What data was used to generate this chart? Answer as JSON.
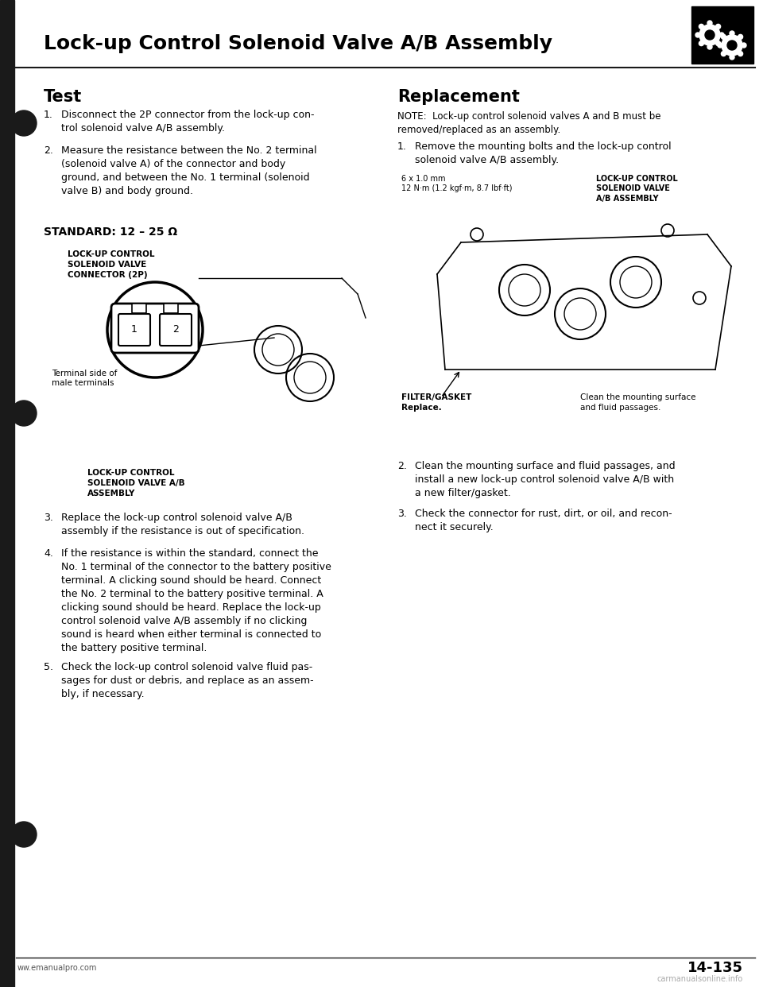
{
  "page_title": "Lock-up Control Solenoid Valve A/B Assembly",
  "page_number": "14-135",
  "website_left": "ww.emanualpro.com",
  "website_right": "carmanualsonline.info",
  "bg_color": "#ffffff",
  "left_bar_color": "#1a1a1a",
  "header_line_color": "#1a1a1a",
  "title_color": "#000000",
  "section_test_title": "Test",
  "section_replacement_title": "Replacement",
  "test_items": [
    "Disconnect the 2P connector from the lock-up con-\ntrol solenoid valve A/B assembly.",
    "Measure the resistance between the No. 2 terminal\n(solenoid valve A) of the connector and body\nground, and between the No. 1 terminal (solenoid\nvalve B) and body ground."
  ],
  "standard_text": "STANDARD: 12 – 25 Ω",
  "connector_label": "LOCK-UP CONTROL\nSOLENOID VALVE\nCONNECTOR (2P)",
  "terminal_label": "Terminal side of\nmale terminals",
  "assembly_label": "LOCK-UP CONTROL\nSOLENOID VALVE A/B\nASSEMBLY",
  "replacement_note": "NOTE:  Lock-up control solenoid valves A and B must be\nremoved/replaced as an assembly.",
  "replacement_items": [
    "Remove the mounting bolts and the lock-up control\nsolenoid valve A/B assembly.",
    "Clean the mounting surface and fluid passages, and\ninstall a new lock-up control solenoid valve A/B with\na new filter/gasket.",
    "Check the connector for rust, dirt, or oil, and recon-\nnect it securely."
  ],
  "bolt_label": "6 x 1.0 mm\n12 N·m (1.2 kgf·m, 8.7 lbf·ft)",
  "lockup_label_right": "LOCK-UP CONTROL\nSOLENOID VALVE\nA/B ASSEMBLY",
  "filter_label": "FILTER/GASKET\nReplace.",
  "clean_label": "Clean the mounting surface\nand fluid passages.",
  "bullet_color": "#1a1a1a"
}
